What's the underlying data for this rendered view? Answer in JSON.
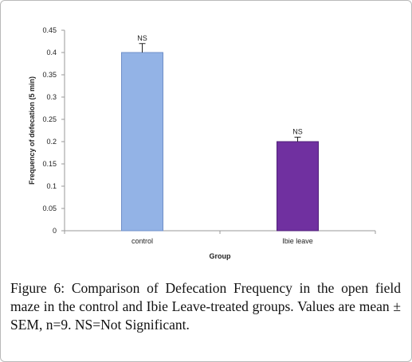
{
  "chart_data": {
    "type": "bar",
    "categories": [
      "control",
      "Ibie leave"
    ],
    "values": [
      0.4,
      0.2
    ],
    "errors": [
      0.02,
      0.01
    ],
    "data_labels": [
      "NS",
      "NS"
    ],
    "xlabel": "Group",
    "ylabel": "Frequency of defecation (5 min)",
    "ylim": [
      0,
      0.45
    ],
    "yticks": [
      "0",
      "0.05",
      "0.1",
      "0.15",
      "0.2",
      "0.25",
      "0.3",
      "0.35",
      "0.4",
      "0.45"
    ],
    "grid": false,
    "bar_colors": [
      "#93b3e6",
      "#7030a0"
    ],
    "bar_edge_colors": [
      "#6f8fc8",
      "#4f1f78"
    ]
  },
  "caption": {
    "label": "Figure 6:",
    "text": " Comparison of Defecation Frequency in the open field maze in the control and Ibie Leave-treated groups. Values are mean ± SEM, n=9. NS=Not Significant."
  }
}
